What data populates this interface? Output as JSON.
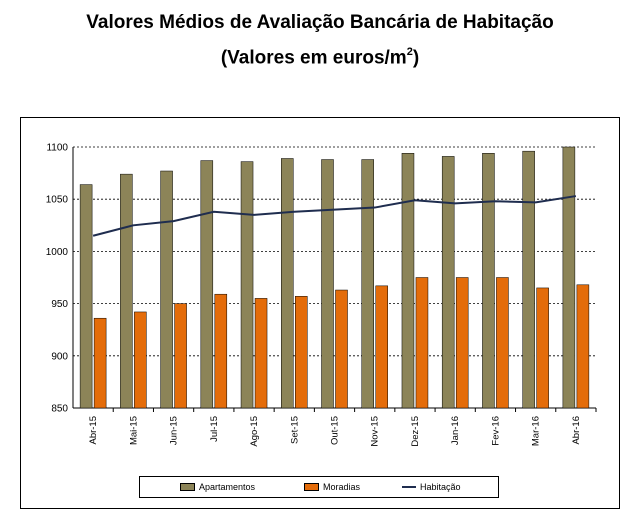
{
  "title": "Valores Médios de Avaliação Bancária de Habitação",
  "subtitle_main": "(Valores em euros/m",
  "subtitle_sup": "2",
  "subtitle_end": ")",
  "chart_data": {
    "type": "bar",
    "categories": [
      "Abr-15",
      "Mai-15",
      "Jun-15",
      "Jul-15",
      "Ago-15",
      "Set-15",
      "Out-15",
      "Nov-15",
      "Dez-15",
      "Jan-16",
      "Fev-16",
      "Mar-16",
      "Abr-16"
    ],
    "series": [
      {
        "name": "Apartamentos",
        "kind": "bar",
        "color": "#8c8458",
        "values": [
          1064,
          1074,
          1077,
          1087,
          1086,
          1089,
          1088,
          1088,
          1094,
          1091,
          1094,
          1096,
          1100
        ]
      },
      {
        "name": "Moradias",
        "kind": "bar",
        "color": "#e46c0a",
        "values": [
          936,
          942,
          950,
          959,
          955,
          957,
          963,
          967,
          975,
          975,
          975,
          965,
          968
        ]
      },
      {
        "name": "Habitação",
        "kind": "line",
        "color": "#1f2d4f",
        "values": [
          1015,
          1025,
          1029,
          1038,
          1035,
          1038,
          1040,
          1042,
          1049,
          1046,
          1048,
          1047,
          1053
        ]
      }
    ],
    "ylim": [
      850,
      1100
    ],
    "yticks": [
      850,
      900,
      950,
      1000,
      1050,
      1100
    ],
    "grid": "horizontal dashed",
    "legend": "bottom"
  }
}
